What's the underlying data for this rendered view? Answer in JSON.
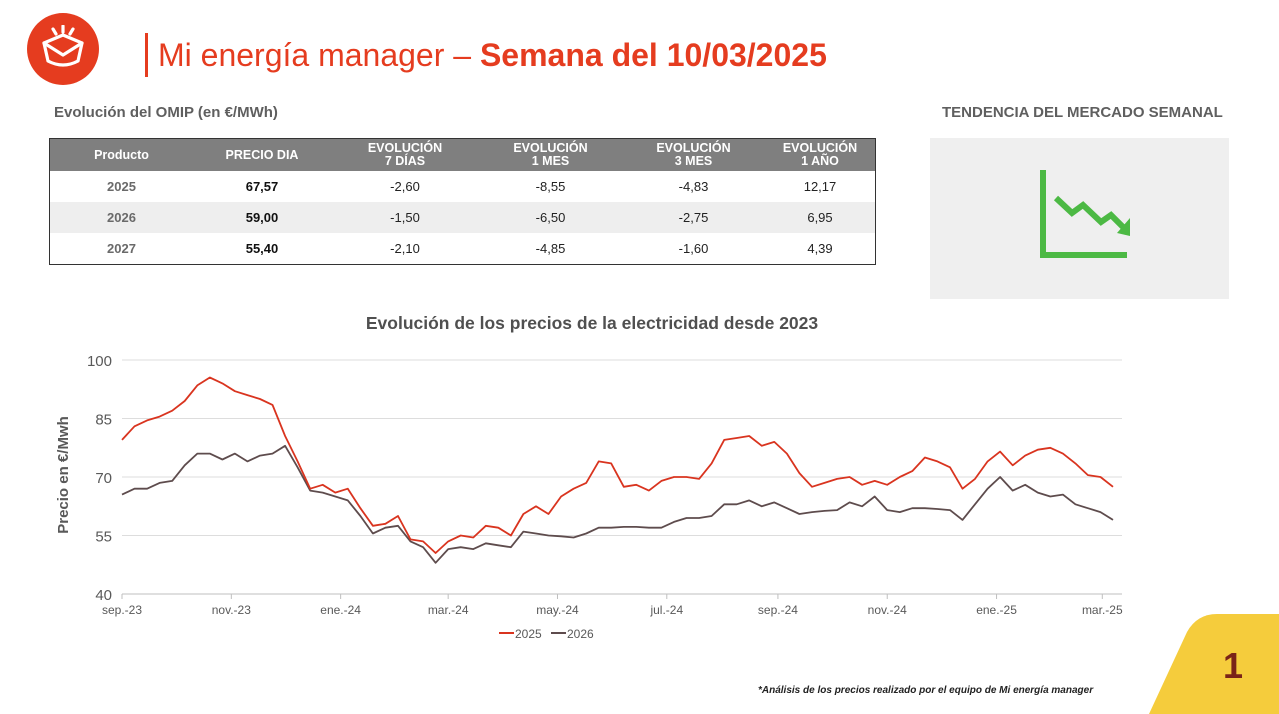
{
  "header": {
    "title_light": "Mi energía manager – ",
    "title_bold": "Semana del 10/03/2025"
  },
  "omip": {
    "caption": "Evolución del OMIP (en €/MWh)",
    "columns": [
      "Producto",
      "PRECIO DIA",
      "EVOLUCIÓN\n7 DÍAS",
      "EVOLUCIÓN\n1 MES",
      "EVOLUCIÓN\n3 MES",
      "EVOLUCIÓN\n1 AÑO"
    ],
    "rows": [
      [
        "2025",
        "67,57",
        "-2,60",
        "-8,55",
        "-4,83",
        "12,17"
      ],
      [
        "2026",
        "59,00",
        "-1,50",
        "-6,50",
        "-2,75",
        "6,95"
      ],
      [
        "2027",
        "55,40",
        "-2,10",
        "-4,85",
        "-1,60",
        "4,39"
      ]
    ]
  },
  "trend": {
    "title": "TENDENCIA DEL MERCADO SEMANAL",
    "icon": "downtrend-chart-icon",
    "color": "#4cb944"
  },
  "chart_data": {
    "type": "line",
    "title": "Evolución de los precios de la electricidad desde 2023",
    "xlabel": "",
    "ylabel": "Precio en €/Mwh",
    "ylim": [
      40,
      100
    ],
    "yticks": [
      40,
      55,
      70,
      85,
      100
    ],
    "grid": true,
    "legend_position": "bottom",
    "x_ticks": [
      "sep.-23",
      "nov.-23",
      "ene.-24",
      "mar.-24",
      "may.-24",
      "jul.-24",
      "sep.-24",
      "nov.-24",
      "ene.-25",
      "mar.-25"
    ],
    "x": [
      "2023-09-01",
      "2023-09-08",
      "2023-09-15",
      "2023-09-22",
      "2023-09-29",
      "2023-10-06",
      "2023-10-13",
      "2023-10-20",
      "2023-10-27",
      "2023-11-03",
      "2023-11-10",
      "2023-11-17",
      "2023-11-24",
      "2023-12-01",
      "2023-12-08",
      "2023-12-15",
      "2023-12-22",
      "2023-12-29",
      "2024-01-05",
      "2024-01-12",
      "2024-01-19",
      "2024-01-26",
      "2024-02-02",
      "2024-02-09",
      "2024-02-16",
      "2024-02-23",
      "2024-03-01",
      "2024-03-08",
      "2024-03-15",
      "2024-03-22",
      "2024-03-29",
      "2024-04-05",
      "2024-04-12",
      "2024-04-19",
      "2024-04-26",
      "2024-05-03",
      "2024-05-10",
      "2024-05-17",
      "2024-05-24",
      "2024-05-31",
      "2024-06-07",
      "2024-06-14",
      "2024-06-21",
      "2024-06-28",
      "2024-07-05",
      "2024-07-12",
      "2024-07-19",
      "2024-07-26",
      "2024-08-02",
      "2024-08-09",
      "2024-08-16",
      "2024-08-23",
      "2024-08-30",
      "2024-09-06",
      "2024-09-13",
      "2024-09-20",
      "2024-09-27",
      "2024-10-04",
      "2024-10-11",
      "2024-10-18",
      "2024-10-25",
      "2024-11-01",
      "2024-11-08",
      "2024-11-15",
      "2024-11-22",
      "2024-11-29",
      "2024-12-06",
      "2024-12-13",
      "2024-12-20",
      "2024-12-27",
      "2025-01-03",
      "2025-01-10",
      "2025-01-17",
      "2025-01-24",
      "2025-01-31",
      "2025-02-07",
      "2025-02-14",
      "2025-02-21",
      "2025-02-28",
      "2025-03-07"
    ],
    "series": [
      {
        "name": "2025",
        "color": "#d9341f",
        "values": [
          79.5,
          83,
          84.5,
          85.5,
          87,
          89.5,
          93.5,
          95.5,
          94,
          92,
          91,
          90,
          88.5,
          80.5,
          74,
          67,
          68,
          66,
          67,
          62,
          57.5,
          58,
          60,
          54,
          53.5,
          50.5,
          53.5,
          55,
          54.5,
          57.5,
          57,
          55,
          60.5,
          62.5,
          60.5,
          65,
          67,
          68.5,
          74,
          73.5,
          67.5,
          68,
          66.5,
          69,
          70,
          70,
          69.5,
          73.5,
          79.5,
          80,
          80.5,
          78,
          79,
          76,
          71,
          67.5,
          68.5,
          69.5,
          70,
          68,
          69,
          68,
          70,
          71.5,
          75,
          74,
          72.5,
          67,
          69.5,
          74,
          76.5,
          73,
          75.5,
          77,
          77.5,
          76,
          73.5,
          70.5,
          70,
          67.5
        ]
      },
      {
        "name": "2026",
        "color": "#5e4c4d",
        "values": [
          65.5,
          67,
          67,
          68.5,
          69,
          73,
          76,
          76,
          74.5,
          76,
          74,
          75.5,
          76,
          78,
          72.5,
          66.5,
          66,
          65,
          64,
          60,
          55.5,
          57,
          57.5,
          53.5,
          52,
          48,
          51.5,
          52,
          51.5,
          53,
          52.5,
          52,
          56,
          55.5,
          55,
          54.8,
          54.5,
          55.5,
          57,
          57,
          57.2,
          57.2,
          57,
          57,
          58.5,
          59.5,
          59.5,
          60,
          63,
          63,
          64,
          62.5,
          63.5,
          62,
          60.5,
          61,
          61.3,
          61.5,
          63.5,
          62.5,
          65,
          61.5,
          61,
          62,
          62,
          61.8,
          61.5,
          59,
          63,
          67,
          70,
          66.5,
          68,
          66,
          65,
          65.5,
          63,
          62,
          61,
          59
        ]
      }
    ]
  },
  "footnote": "*Análisis de los precios realizado por el equipo de Mi energía manager",
  "page_number": "1",
  "colors": {
    "brand": "#e53c1f",
    "table_header": "#7f7f7f",
    "corner": "#f5cc3c"
  }
}
